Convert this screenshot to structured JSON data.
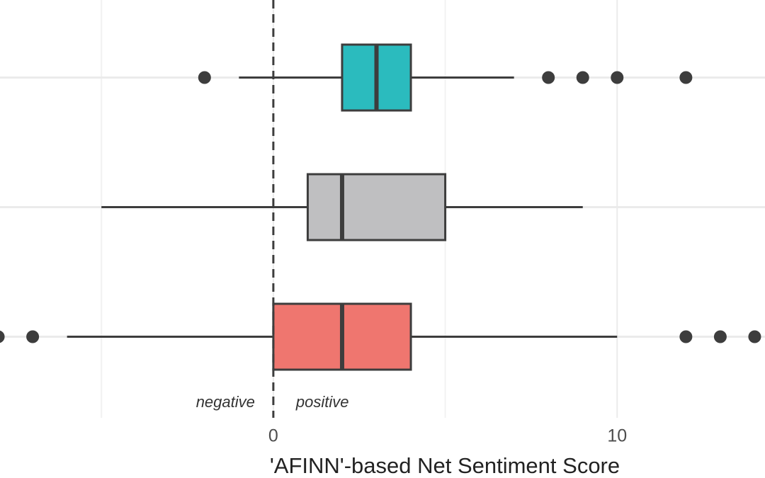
{
  "chart_data": {
    "type": "boxplot",
    "orientation": "horizontal",
    "xlabel": "'AFINN'-based Net Sentiment Score",
    "xlim": [
      -7.95,
      14.3
    ],
    "xticks": [
      0,
      10
    ],
    "xgrid_minor": [
      -5,
      5
    ],
    "grid": true,
    "categories": [
      null,
      null,
      null
    ],
    "boxes": [
      {
        "color": "#2bbbbe",
        "whislo": -1,
        "q1": 2,
        "median": 3,
        "q3": 4,
        "whishi": 7,
        "outliers": [
          -2,
          8,
          9,
          10,
          12
        ]
      },
      {
        "color": "#bfbfc1",
        "whislo": -5,
        "q1": 1,
        "median": 2,
        "q3": 5,
        "whishi": 9,
        "outliers": []
      },
      {
        "color": "#ef766f",
        "whislo": -6,
        "q1": 0,
        "median": 2,
        "q3": 4,
        "whishi": 10,
        "outliers": [
          -8,
          -7,
          12,
          13,
          14
        ]
      }
    ],
    "vline": 0,
    "annotations": [
      {
        "text": "negative",
        "side": "left"
      },
      {
        "text": "positive",
        "side": "right"
      }
    ]
  }
}
